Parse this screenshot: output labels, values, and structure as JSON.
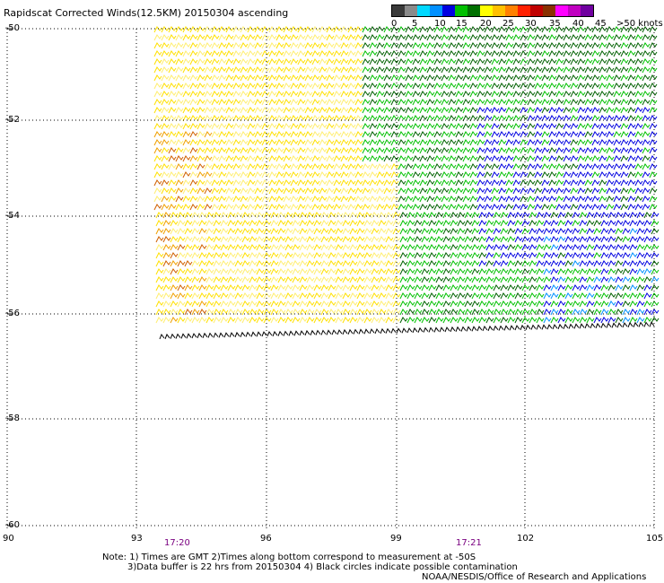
{
  "title": "Rapidscat Corrected Winds(12.5KM) 20150304 ascending",
  "colorbar": {
    "colors": [
      "#3a3a3a",
      "#8a8a8a",
      "#00d8ff",
      "#0090ff",
      "#0000e0",
      "#00c000",
      "#007000",
      "#ffff00",
      "#ffc000",
      "#ff8000",
      "#ff2000",
      "#c00000",
      "#8a3000",
      "#ff00ff",
      "#c000c0",
      "#7000a0"
    ],
    "labels": [
      "0",
      "5",
      "10",
      "15",
      "20",
      "25",
      "30",
      "35",
      "40",
      "45",
      ">50 knots"
    ]
  },
  "axes": {
    "lat_labels": [
      "-50",
      "-52",
      "-54",
      "-56",
      "-58",
      "-60"
    ],
    "lon_labels": [
      "90",
      "93",
      "96",
      "99",
      "102",
      "105"
    ]
  },
  "times": [
    "17:20",
    "17:21"
  ],
  "notes": {
    "line1": "Note: 1) Times are GMT 2)Times along bottom correspond to measurement at -50S",
    "line2": "3)Data buffer is 22 hrs from 20150304 4) Black circles indicate possible contamination"
  },
  "credit": "NOAA/NESDIS/Office of Research and Applications",
  "wind_colors": {
    "yellow": "#ffe000",
    "light_yellow": "#ffee70",
    "orange": "#f0a000",
    "dark_orange": "#d06000",
    "green": "#00c000",
    "dark_green": "#006000",
    "blue": "#0000e0",
    "cyan": "#0090ff",
    "black": "#000000"
  }
}
